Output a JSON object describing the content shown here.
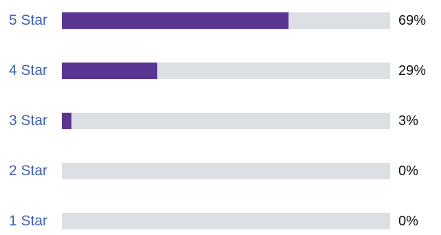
{
  "colors": {
    "label": "#3f5fb0",
    "bar_fill": "#5a3592",
    "bar_track": "#dcdfe3",
    "percent_text": "#111111"
  },
  "ratings": [
    {
      "label": "5 Star",
      "percent_text": "69%",
      "value": 0.69
    },
    {
      "label": "4 Star",
      "percent_text": "29%",
      "value": 0.29
    },
    {
      "label": "3 Star",
      "percent_text": "3%",
      "value": 0.03
    },
    {
      "label": "2 Star",
      "percent_text": "0%",
      "value": 0.0
    },
    {
      "label": "1 Star",
      "percent_text": "0%",
      "value": 0.0
    }
  ]
}
